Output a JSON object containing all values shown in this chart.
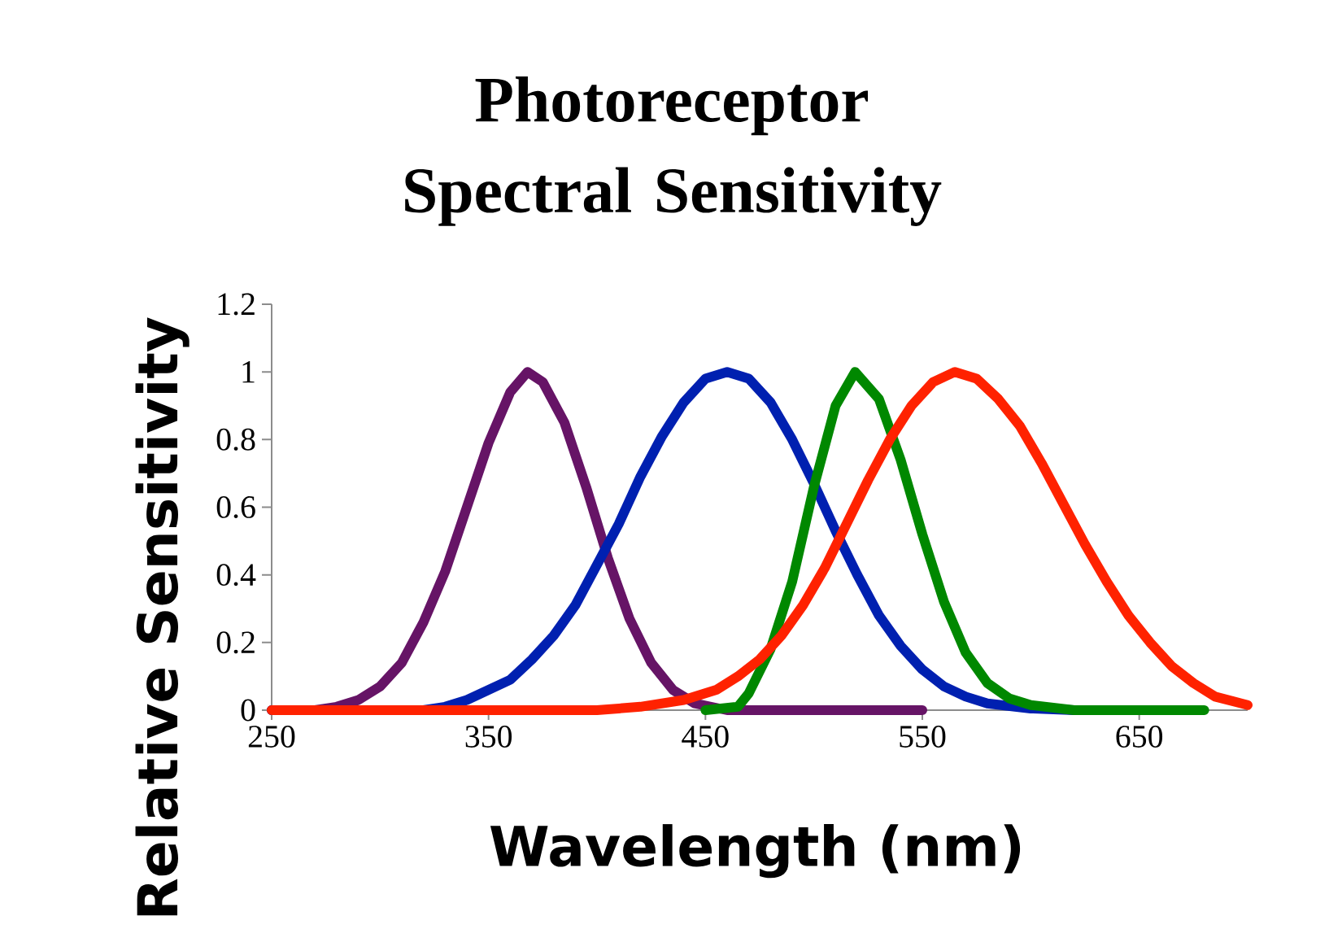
{
  "chart_data": {
    "type": "line",
    "title": "Photoreceptor Spectral Sensitivity",
    "xlabel": "Wavelength (nm)",
    "ylabel": "Relative Sensitivity",
    "xlim": [
      250,
      700
    ],
    "xticks": [
      250,
      350,
      450,
      550,
      650
    ],
    "ylim": [
      0,
      1.2
    ],
    "yticks": [
      0,
      0.2,
      0.4,
      0.6,
      0.8,
      1,
      1.2
    ],
    "grid": false,
    "series": [
      {
        "color": "#661466",
        "x": [
          250,
          270,
          280,
          290,
          300,
          310,
          320,
          330,
          340,
          350,
          360,
          368,
          375,
          385,
          395,
          405,
          415,
          425,
          435,
          445,
          460,
          500,
          550
        ],
        "values": [
          0,
          0,
          0.01,
          0.03,
          0.07,
          0.14,
          0.26,
          0.41,
          0.6,
          0.79,
          0.94,
          1,
          0.97,
          0.85,
          0.66,
          0.45,
          0.27,
          0.14,
          0.06,
          0.02,
          0,
          0,
          0
        ]
      },
      {
        "color": "#0020b0",
        "x": [
          250,
          320,
          330,
          340,
          350,
          360,
          370,
          380,
          390,
          400,
          410,
          420,
          430,
          440,
          450,
          460,
          470,
          480,
          490,
          500,
          510,
          520,
          530,
          540,
          550,
          560,
          570,
          580,
          600,
          620,
          650
        ],
        "values": [
          0,
          0,
          0.01,
          0.03,
          0.06,
          0.09,
          0.15,
          0.22,
          0.31,
          0.43,
          0.55,
          0.69,
          0.81,
          0.91,
          0.98,
          1,
          0.98,
          0.91,
          0.8,
          0.67,
          0.53,
          0.4,
          0.28,
          0.19,
          0.12,
          0.07,
          0.04,
          0.02,
          0.005,
          0,
          0
        ]
      },
      {
        "color": "#008800",
        "x": [
          450,
          465,
          470,
          480,
          490,
          500,
          510,
          519,
          530,
          540,
          550,
          560,
          570,
          580,
          590,
          600,
          620,
          680
        ],
        "values": [
          0,
          0.01,
          0.05,
          0.18,
          0.38,
          0.66,
          0.9,
          1,
          0.92,
          0.74,
          0.52,
          0.32,
          0.17,
          0.08,
          0.035,
          0.015,
          0,
          0
        ]
      },
      {
        "color": "#ff2200",
        "x": [
          250,
          400,
          420,
          440,
          455,
          465,
          475,
          485,
          495,
          505,
          515,
          525,
          535,
          545,
          555,
          565,
          575,
          585,
          595,
          605,
          615,
          625,
          635,
          645,
          655,
          665,
          675,
          685,
          700
        ],
        "values": [
          0,
          0,
          0.01,
          0.03,
          0.06,
          0.1,
          0.15,
          0.22,
          0.31,
          0.42,
          0.55,
          0.68,
          0.8,
          0.9,
          0.97,
          1,
          0.98,
          0.92,
          0.84,
          0.73,
          0.61,
          0.49,
          0.38,
          0.28,
          0.2,
          0.13,
          0.08,
          0.04,
          0.015
        ]
      }
    ]
  }
}
